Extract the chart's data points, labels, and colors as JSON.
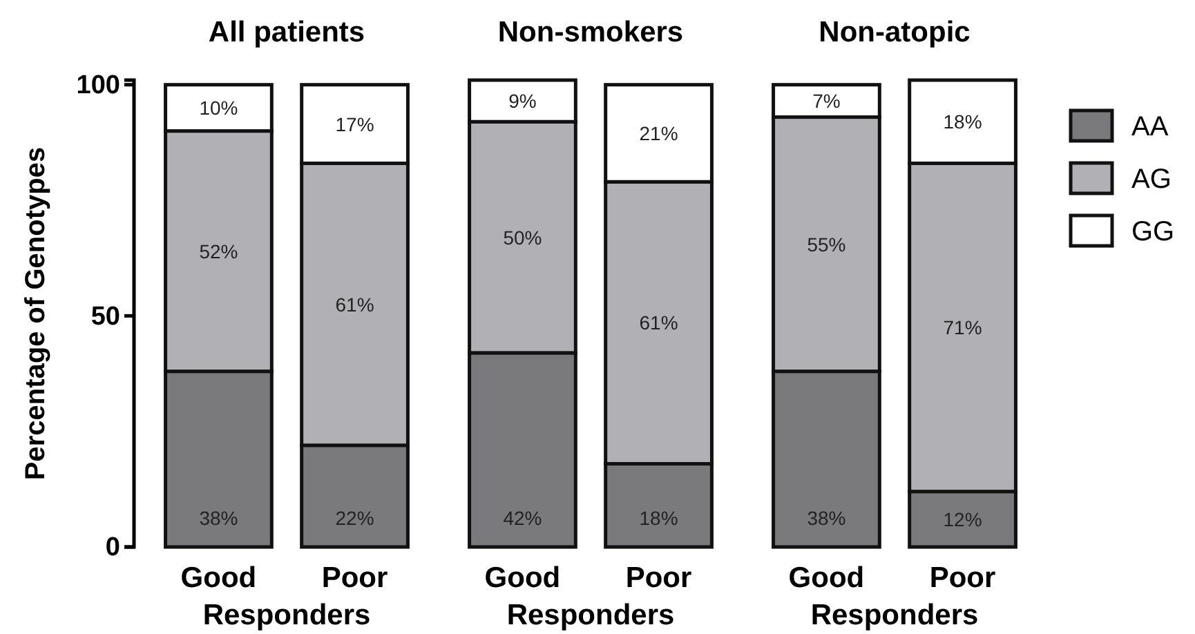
{
  "chart_data": [
    {
      "type": "bar",
      "title": "All patients",
      "xlabel": "Responders",
      "ylabel": "Percentage of Genotypes",
      "categories": [
        "Good",
        "Poor"
      ],
      "stacked": true,
      "ylim": [
        0,
        101
      ],
      "yticks": [
        0,
        50,
        100
      ],
      "legend": false,
      "series": [
        {
          "color": "#7a7a7c",
          "values": [
            38,
            22
          ],
          "value_labels": [
            "38%",
            "22%"
          ]
        },
        {
          "color": "#b1b1b5",
          "values": [
            52,
            61
          ],
          "value_labels": [
            "52%",
            "61%"
          ]
        },
        {
          "color": "#ffffff",
          "values": [
            10,
            17
          ],
          "value_labels": [
            "10%",
            "17%"
          ]
        }
      ]
    },
    {
      "type": "bar",
      "title": "Non-smokers",
      "xlabel": "Responders",
      "categories": [
        "Good",
        "Poor"
      ],
      "stacked": true,
      "ylim": [
        0,
        101
      ],
      "tick_labels": "x",
      "legend": false,
      "series": [
        {
          "color": "#7a7a7c",
          "values": [
            42,
            18
          ],
          "value_labels": [
            "42%",
            "18%"
          ]
        },
        {
          "color": "#b1b1b5",
          "values": [
            50,
            61
          ],
          "value_labels": [
            "50%",
            "61%"
          ]
        },
        {
          "color": "#ffffff",
          "values": [
            9,
            21
          ],
          "value_labels": [
            "9%",
            "21%"
          ]
        }
      ]
    },
    {
      "type": "bar",
      "title": "Non-atopic",
      "xlabel": "Responders",
      "categories": [
        "Good",
        "Poor"
      ],
      "stacked": true,
      "ylim": [
        0,
        101
      ],
      "tick_labels": "x",
      "legend": "right",
      "series": [
        {
          "name": "AA",
          "color": "#7a7a7c",
          "values": [
            38,
            12
          ],
          "value_labels": [
            "38%",
            "12%"
          ]
        },
        {
          "name": "AG",
          "color": "#b1b1b5",
          "values": [
            55,
            71
          ],
          "value_labels": [
            "55%",
            "71%"
          ]
        },
        {
          "name": "GG",
          "color": "#ffffff",
          "values": [
            7,
            18
          ],
          "value_labels": [
            "7%",
            "18%"
          ]
        }
      ]
    }
  ]
}
